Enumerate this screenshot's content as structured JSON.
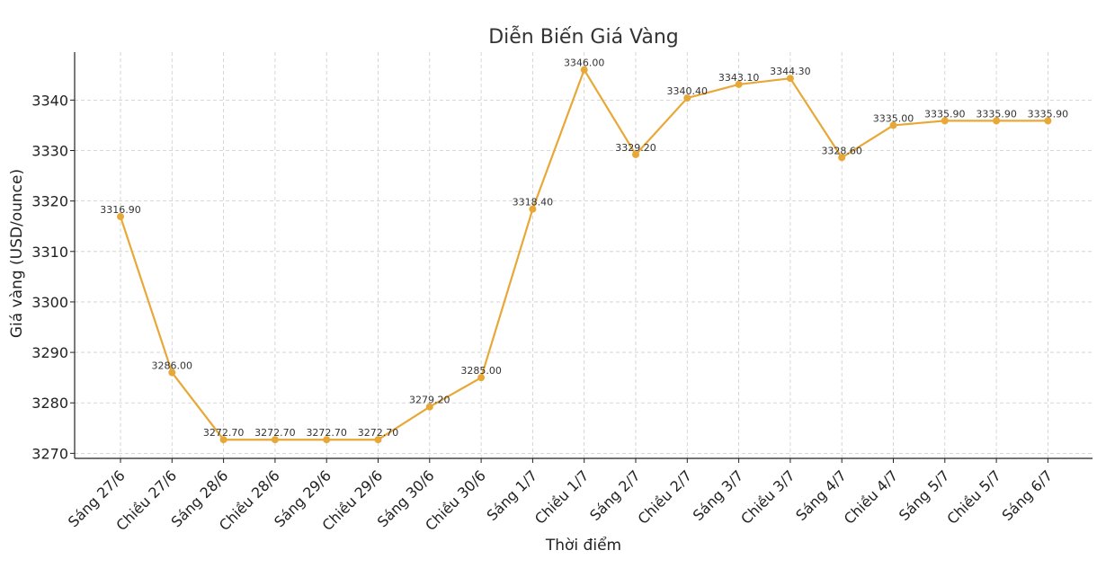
{
  "chart_data": {
    "type": "line",
    "title": "Diễn Biến Giá Vàng",
    "xlabel": "Thời điểm",
    "ylabel": "Giá vàng (USD/ounce)",
    "categories": [
      "Sáng 27/6",
      "Chiều 27/6",
      "Sáng 28/6",
      "Chiều 28/6",
      "Sáng 29/6",
      "Chiều 29/6",
      "Sáng 30/6",
      "Chiều 30/6",
      "Sáng 1/7",
      "Chiều 1/7",
      "Sáng 2/7",
      "Chiều 2/7",
      "Sáng 3/7",
      "Chiều 3/7",
      "Sáng 4/7",
      "Chiều 4/7",
      "Sáng 5/7",
      "Chiều 5/7",
      "Sáng 6/7"
    ],
    "values": [
      3316.9,
      3286.0,
      3272.7,
      3272.7,
      3272.7,
      3272.7,
      3279.2,
      3285.0,
      3318.4,
      3346.0,
      3329.2,
      3340.4,
      3343.1,
      3344.3,
      3328.6,
      3335.0,
      3335.9,
      3335.9,
      3335.9
    ],
    "data_labels": [
      "3316.90",
      "3286.00",
      "3272.70",
      "3272.70",
      "3272.70",
      "3272.70",
      "3279.20",
      "3285.00",
      "3318.40",
      "3346.00",
      "3329.20",
      "3340.40",
      "3343.10",
      "3344.30",
      "3328.60",
      "3335.00",
      "3335.90",
      "3335.90",
      "3335.90"
    ],
    "yticks": [
      3270,
      3280,
      3290,
      3300,
      3310,
      3320,
      3330,
      3340
    ],
    "ylim": [
      3269.0,
      3349.5
    ],
    "grid": true,
    "line_color": "#E8A838"
  }
}
